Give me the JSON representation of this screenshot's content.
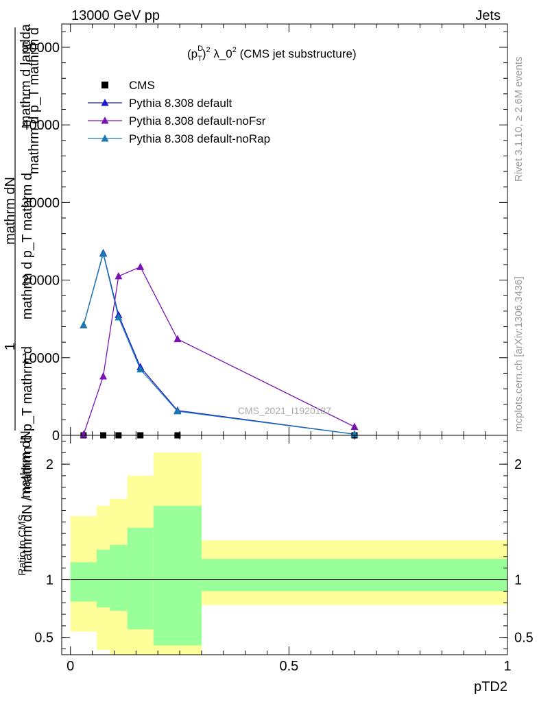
{
  "header": {
    "left": "13000 GeV pp",
    "right": "Jets"
  },
  "side_labels": {
    "top": "Rivet 3.1.10, ≥ 2.6M events",
    "bottom": "mcplots.cern.ch [arXiv:1306.3436]"
  },
  "chart_data": [
    {
      "type": "line",
      "title": "(p_T^D)^2 λ_0^2 (CMS jet substructure)",
      "title_parts": {
        "open": "(p",
        "sub": "T",
        "sup_d": "D",
        "mid": ")",
        "sup2": "2",
        "lam": " λ_0",
        "sup3": "2",
        "tail": " (CMS jet substructure)"
      },
      "ylabel_lines": [
        "mathrm d landda",
        "mathrm d p_T mathrm d",
        "mathrm dN",
        "mathrm d p_T mathrm d",
        "1",
        "mathrm dN / mathrm d p_T mathrm d",
        "mathrm dN"
      ],
      "ylim": [
        0,
        53000
      ],
      "xlim": [
        -0.02,
        1.0
      ],
      "yticks": [
        0,
        10000,
        20000,
        30000,
        40000,
        50000
      ],
      "ytick_labels": [
        "0",
        "10000",
        "20000",
        "30000",
        "40000",
        "50000"
      ],
      "legend_placement": "top-left",
      "watermark": "CMS_2021_I1920187",
      "series": [
        {
          "name": "CMS",
          "color": "#000000",
          "marker": "square",
          "x": [
            0.03,
            0.075,
            0.11,
            0.16,
            0.245,
            0.65
          ],
          "y": [
            0,
            0,
            0,
            0,
            0,
            0
          ]
        },
        {
          "name": "Pythia 8.308 default",
          "color": "#1a1acc",
          "marker": "triangle",
          "x": [
            0.03,
            0.075,
            0.11,
            0.16,
            0.245,
            0.65
          ],
          "y": [
            14200,
            23500,
            15500,
            8800,
            3200,
            150
          ]
        },
        {
          "name": "Pythia 8.308 default-noFsr",
          "color": "#7a12b4",
          "marker": "triangle",
          "x": [
            0.03,
            0.075,
            0.11,
            0.16,
            0.245,
            0.65
          ],
          "y": [
            100,
            7600,
            20500,
            21700,
            12400,
            1100
          ]
        },
        {
          "name": "Pythia 8.308 default-noRap",
          "color": "#1a7ab0",
          "marker": "triangle",
          "x": [
            0.03,
            0.075,
            0.11,
            0.16,
            0.245,
            0.65
          ],
          "y": [
            14200,
            23400,
            15200,
            8500,
            3100,
            140
          ]
        }
      ]
    },
    {
      "type": "area",
      "ylabel": "Ratio to CMS",
      "xlabel": "pTD2",
      "xlim": [
        -0.02,
        1.0
      ],
      "ylim": [
        0.35,
        2.25
      ],
      "xticks": [
        0,
        0.5,
        1
      ],
      "xtick_labels": [
        "0",
        "0.5",
        "1"
      ],
      "yticks": [
        0.5,
        1,
        2
      ],
      "ytick_labels": [
        "0.5",
        "1",
        "2"
      ],
      "reference_line": 1,
      "bins": [
        {
          "lo": 0.0,
          "hi": 0.06,
          "green": [
            0.81,
            1.15
          ],
          "yellow": [
            0.55,
            1.55
          ]
        },
        {
          "lo": 0.06,
          "hi": 0.09,
          "green": [
            0.76,
            1.26
          ],
          "yellow": [
            0.39,
            1.64
          ]
        },
        {
          "lo": 0.09,
          "hi": 0.13,
          "green": [
            0.73,
            1.3
          ],
          "yellow": [
            0.35,
            1.7
          ]
        },
        {
          "lo": 0.13,
          "hi": 0.19,
          "green": [
            0.57,
            1.45
          ],
          "yellow": [
            0.35,
            1.9
          ]
        },
        {
          "lo": 0.19,
          "hi": 0.3,
          "green": [
            0.43,
            1.64
          ],
          "yellow": [
            0.35,
            2.1
          ]
        },
        {
          "lo": 0.3,
          "hi": 1.0,
          "green": [
            0.9,
            1.18
          ],
          "yellow": [
            0.78,
            1.34
          ]
        }
      ],
      "band_colors": {
        "yellow": "#ffff99",
        "green": "#99ff99"
      }
    }
  ]
}
